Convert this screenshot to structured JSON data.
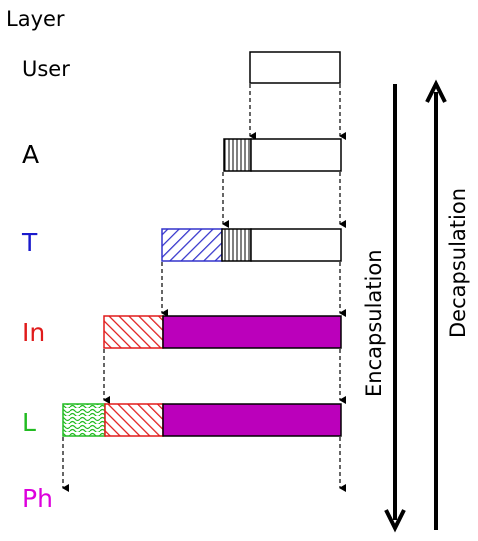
{
  "header": {
    "title": "Layer"
  },
  "layers": [
    {
      "key": "user",
      "label": "User",
      "color": "#000000"
    },
    {
      "key": "a",
      "label": "A",
      "color": "#000000"
    },
    {
      "key": "t",
      "label": "T",
      "color": "#1a1acc"
    },
    {
      "key": "in",
      "label": "In",
      "color": "#e01b1b"
    },
    {
      "key": "l",
      "label": "L",
      "color": "#22bb22"
    },
    {
      "key": "ph",
      "label": "Ph",
      "color": "#dd00dd"
    }
  ],
  "arrows": {
    "encapsulation": "Encapsulation",
    "decapsulation": "Decapsulation"
  },
  "colors": {
    "payload_fill": "#bb00bb",
    "a_header": "#000000",
    "t_header": "#3333cc",
    "in_header": "#e01b1b",
    "l_header": "#22bb22"
  }
}
